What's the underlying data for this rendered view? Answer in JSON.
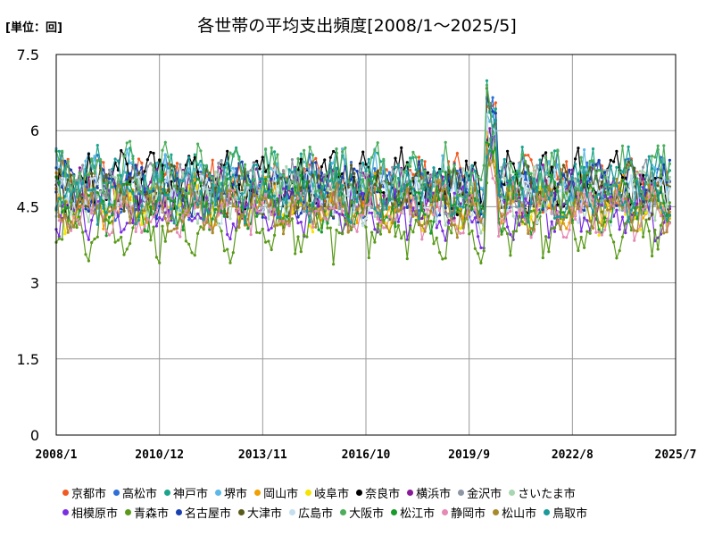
{
  "header": {
    "unit": "[単位：回]",
    "title": "各世帯の平均支出頻度[2008/1～2025/5]"
  },
  "chart_data": {
    "type": "line",
    "title": "各世帯の平均支出頻度[2008/1～2025/5]",
    "unit_label": "[単位：回]",
    "x_range": [
      "2008/1",
      "2025/7"
    ],
    "x_ticks": [
      "2008/1",
      "2010/12",
      "2013/11",
      "2016/10",
      "2019/9",
      "2022/8",
      "2025/7"
    ],
    "y_ticks": [
      "0",
      "1.5",
      "3",
      "4.5",
      "6",
      "7.5"
    ],
    "ylim": [
      0,
      7.5
    ],
    "grid": true,
    "legend_position": "bottom",
    "series": [
      {
        "name": "京都市",
        "color": "#f15a22",
        "mean": 4.95,
        "amp": 0.35,
        "noise": 0.3
      },
      {
        "name": "高松市",
        "color": "#2f6fd6",
        "mean": 4.9,
        "amp": 0.35,
        "noise": 0.35
      },
      {
        "name": "神戸市",
        "color": "#1aa58a",
        "mean": 5.05,
        "amp": 0.35,
        "noise": 0.35
      },
      {
        "name": "堺市",
        "color": "#5bb8e8",
        "mean": 5.0,
        "amp": 0.35,
        "noise": 0.35
      },
      {
        "name": "岡山市",
        "color": "#f0a000",
        "mean": 4.6,
        "amp": 0.3,
        "noise": 0.3
      },
      {
        "name": "岐阜市",
        "color": "#f5e400",
        "mean": 4.5,
        "amp": 0.3,
        "noise": 0.3
      },
      {
        "name": "奈良市",
        "color": "#000000",
        "mean": 5.0,
        "amp": 0.35,
        "noise": 0.35
      },
      {
        "name": "横浜市",
        "color": "#8b1a9a",
        "mean": 4.75,
        "amp": 0.3,
        "noise": 0.3
      },
      {
        "name": "金沢市",
        "color": "#8c96a4",
        "mean": 4.85,
        "amp": 0.3,
        "noise": 0.3
      },
      {
        "name": "さいたま市",
        "color": "#a9d6b0",
        "mean": 4.7,
        "amp": 0.3,
        "noise": 0.3
      },
      {
        "name": "相模原市",
        "color": "#7a2fe0",
        "mean": 4.4,
        "amp": 0.3,
        "noise": 0.3
      },
      {
        "name": "青森市",
        "color": "#5a9a1a",
        "mean": 4.1,
        "amp": 0.4,
        "noise": 0.35
      },
      {
        "name": "名古屋市",
        "color": "#1a3fb0",
        "mean": 4.85,
        "amp": 0.3,
        "noise": 0.3
      },
      {
        "name": "大津市",
        "color": "#5a5a1a",
        "mean": 4.8,
        "amp": 0.3,
        "noise": 0.3
      },
      {
        "name": "広島市",
        "color": "#c4dff0",
        "mean": 4.7,
        "amp": 0.3,
        "noise": 0.3
      },
      {
        "name": "大阪市",
        "color": "#4cae5c",
        "mean": 5.1,
        "amp": 0.35,
        "noise": 0.35
      },
      {
        "name": "松江市",
        "color": "#1a9a2a",
        "mean": 4.55,
        "amp": 0.35,
        "noise": 0.3
      },
      {
        "name": "静岡市",
        "color": "#e58ab4",
        "mean": 4.4,
        "amp": 0.3,
        "noise": 0.3
      },
      {
        "name": "松山市",
        "color": "#a88a2a",
        "mean": 4.45,
        "amp": 0.3,
        "noise": 0.3
      },
      {
        "name": "鳥取市",
        "color": "#1a9a9a",
        "mean": 4.8,
        "amp": 0.35,
        "noise": 0.35
      }
    ]
  }
}
